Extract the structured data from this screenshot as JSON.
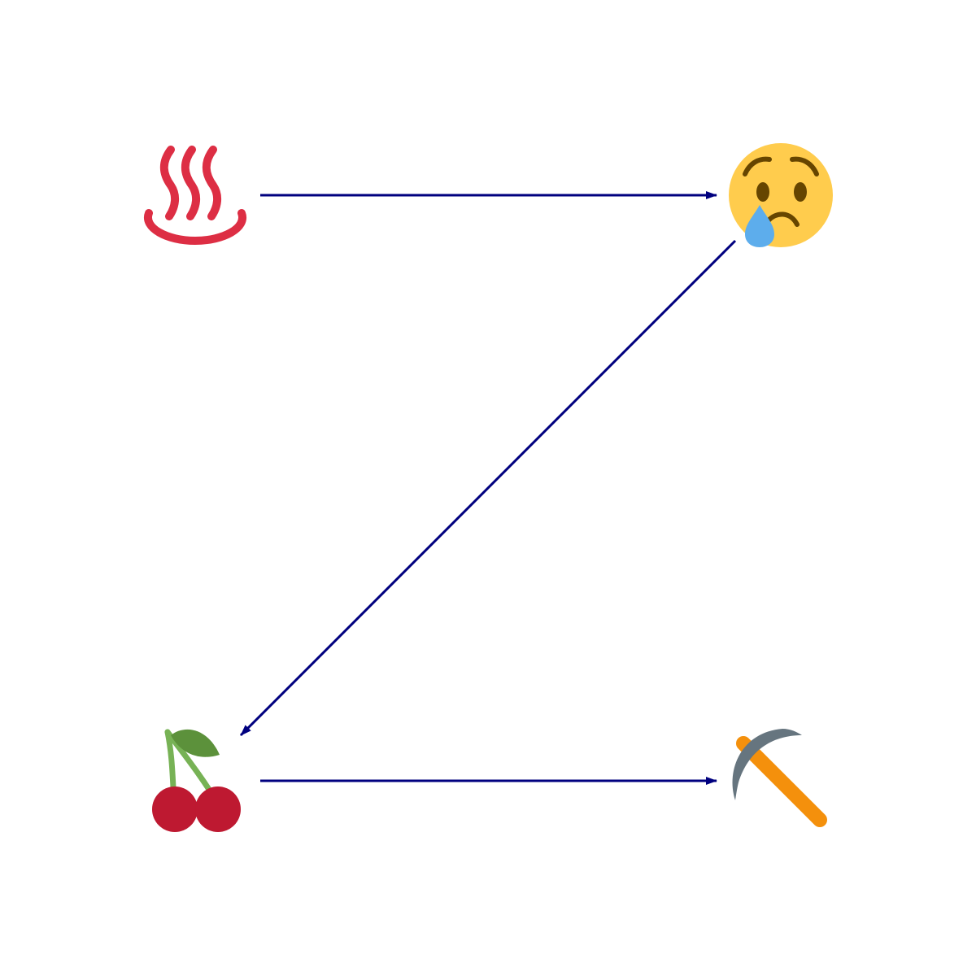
{
  "diagram": {
    "nodes": [
      {
        "id": "hot-springs",
        "icon": "hot-springs-icon"
      },
      {
        "id": "crying-face",
        "icon": "crying-face-icon"
      },
      {
        "id": "cherries",
        "icon": "cherries-icon"
      },
      {
        "id": "pick",
        "icon": "pick-icon"
      }
    ],
    "edges": [
      {
        "from": "hot-springs",
        "to": "crying-face"
      },
      {
        "from": "crying-face",
        "to": "cherries"
      },
      {
        "from": "cherries",
        "to": "pick"
      }
    ],
    "colors": {
      "arrow": "#00007f",
      "hot_springs": "#dd2e44",
      "face": "#ffcc4d",
      "face_features": "#664500",
      "tear": "#5dadec",
      "cherry": "#be1931",
      "stem": "#77b255",
      "leaf": "#5c913b",
      "pick_head": "#66757f",
      "pick_handle": "#f4900c"
    }
  }
}
